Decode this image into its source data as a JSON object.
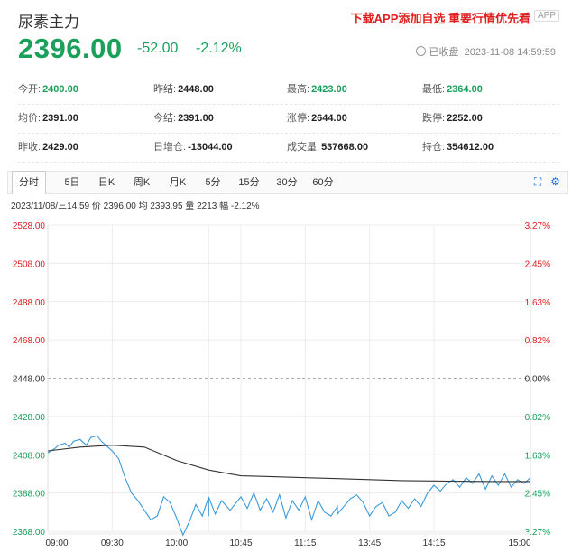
{
  "header": {
    "name": "尿素主力",
    "promo": "下载APP添加自选 重要行情优先看",
    "app_badge": "APP",
    "price": "2396.00",
    "change": "-52.00",
    "change_pct": "-2.12%",
    "status": "已收盘",
    "datetime": "2023-11-08 14:59:59"
  },
  "stats": [
    [
      {
        "label": "今开:",
        "value": "2400.00",
        "color": "g"
      },
      {
        "label": "昨结:",
        "value": "2448.00",
        "color": "k"
      },
      {
        "label": "最高:",
        "value": "2423.00",
        "color": "g"
      },
      {
        "label": "最低:",
        "value": "2364.00",
        "color": "g"
      }
    ],
    [
      {
        "label": "均价:",
        "value": "2391.00",
        "color": "k"
      },
      {
        "label": "今结:",
        "value": "2391.00",
        "color": "k"
      },
      {
        "label": "涨停:",
        "value": "2644.00",
        "color": "k"
      },
      {
        "label": "跌停:",
        "value": "2252.00",
        "color": "k"
      }
    ],
    [
      {
        "label": "昨收:",
        "value": "2429.00",
        "color": "k"
      },
      {
        "label": "日增仓:",
        "value": "-13044.00",
        "color": "k"
      },
      {
        "label": "成交量:",
        "value": "537668.00",
        "color": "k"
      },
      {
        "label": "持仓:",
        "value": "354612.00",
        "color": "k"
      }
    ]
  ],
  "tabs": [
    "分时",
    "5日",
    "日K",
    "周K",
    "月K",
    "5分",
    "15分",
    "30分",
    "60分"
  ],
  "active_tab": "分时",
  "info_line": "2023/11/08/三14:59  价 2396.00  均 2393.95  量 2213  幅 -2.12%",
  "icons": {
    "fullscreen": "fullscreen-icon",
    "settings": "gear-icon",
    "clock": "clock-icon"
  },
  "colors": {
    "up": "#e02020",
    "down": "#1aa05a",
    "price_line": "#3a9ad9",
    "avg_line": "#333333"
  },
  "chart_data": {
    "type": "line",
    "title": "",
    "xlabel": "",
    "ylabel": "",
    "ylim": [
      2368,
      2528
    ],
    "prev_settle": 2448,
    "y_ticks": [
      "2528.00",
      "2508.00",
      "2488.00",
      "2468.00",
      "2448.00",
      "2428.00",
      "2408.00",
      "2388.00",
      "2368.00"
    ],
    "pct_ticks": [
      "3.27%",
      "2.45%",
      "1.63%",
      "0.82%",
      "0.00%",
      "0.82%",
      "1.63%",
      "2.45%",
      "3.27%"
    ],
    "x_ticks": [
      "09:00",
      "09:30",
      "10:00",
      "10:45",
      "11:15",
      "13:45",
      "14:15",
      "15:00"
    ],
    "grid": true,
    "series": [
      {
        "type": "price",
        "x": [
          "09:00",
          "09:03",
          "09:05",
          "09:08",
          "09:10",
          "09:12",
          "09:15",
          "09:18",
          "09:20",
          "09:23",
          "09:25",
          "09:28",
          "09:30",
          "09:33",
          "09:36",
          "09:39",
          "09:42",
          "09:45",
          "09:48",
          "09:51",
          "09:54",
          "09:57",
          "10:00",
          "10:03",
          "10:06",
          "10:09",
          "10:12",
          "10:15",
          "10:18",
          "10:21",
          "10:24",
          "10:27",
          "10:30",
          "10:33",
          "10:36",
          "10:40",
          "10:45",
          "10:48",
          "10:51",
          "10:54",
          "10:57",
          "11:00",
          "11:03",
          "11:06",
          "11:09",
          "11:12",
          "11:15",
          "11:18",
          "11:21",
          "11:24",
          "11:27",
          "11:30",
          "13:30",
          "13:33",
          "13:36",
          "13:39",
          "13:42",
          "13:45",
          "13:48",
          "13:51",
          "13:54",
          "13:57",
          "14:00",
          "14:03",
          "14:06",
          "14:09",
          "14:12",
          "14:15",
          "14:18",
          "14:21",
          "14:24",
          "14:27",
          "14:30",
          "14:33",
          "14:36",
          "14:39",
          "14:42",
          "14:45",
          "14:48",
          "14:51",
          "14:54",
          "14:57",
          "15:00"
        ],
        "values": [
          2409,
          2411,
          2413,
          2414,
          2412,
          2415,
          2416,
          2413,
          2417,
          2418,
          2415,
          2412,
          2410,
          2406,
          2396,
          2388,
          2384,
          2379,
          2374,
          2376,
          2386,
          2383,
          2375,
          2366,
          2373,
          2382,
          2376,
          2386,
          2378,
          2384,
          2376,
          2381,
          2386,
          2377,
          2384,
          2379,
          2386,
          2380,
          2388,
          2379,
          2385,
          2378,
          2387,
          2375,
          2384,
          2379,
          2386,
          2374,
          2384,
          2378,
          2376,
          2381,
          2377,
          2381,
          2385,
          2387,
          2383,
          2376,
          2381,
          2383,
          2376,
          2378,
          2384,
          2380,
          2385,
          2381,
          2388,
          2392,
          2389,
          2393,
          2395,
          2391,
          2396,
          2393,
          2398,
          2390,
          2397,
          2392,
          2398,
          2391,
          2395,
          2393,
          2396
        ]
      },
      {
        "type": "average",
        "x": [
          "09:00",
          "09:15",
          "09:30",
          "09:45",
          "10:00",
          "10:30",
          "10:45",
          "11:00",
          "11:15",
          "11:30",
          "13:45",
          "14:00",
          "14:15",
          "14:30",
          "14:45",
          "15:00"
        ],
        "values": [
          2410,
          2412,
          2413,
          2412,
          2405,
          2400,
          2397,
          2396.5,
          2396,
          2395.5,
          2395,
          2394.5,
          2394.3,
          2394.1,
          2394,
          2394
        ]
      }
    ]
  }
}
